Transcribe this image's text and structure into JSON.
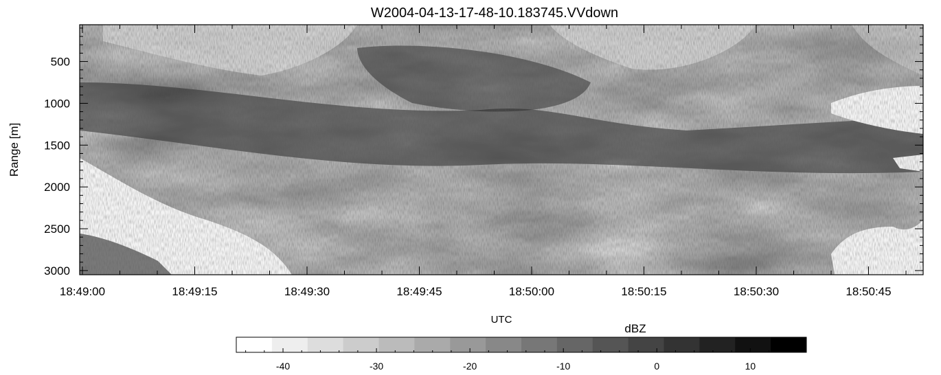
{
  "chart_data": {
    "type": "heatmap",
    "title": "W2004-04-13-17-48-10.183745.VVdown",
    "xlabel": "UTC",
    "ylabel": "Range [m]",
    "x_tick_labels": [
      "18:49:00",
      "18:49:15",
      "18:49:30",
      "18:49:45",
      "18:50:00",
      "18:50:15",
      "18:50:30",
      "18:50:45"
    ],
    "y_tick_labels": [
      "500",
      "1000",
      "1500",
      "2000",
      "2500",
      "3000"
    ],
    "y_ticks": [
      500,
      1000,
      1500,
      2000,
      2500,
      3000
    ],
    "ylim": [
      3050,
      60
    ],
    "colorbar": {
      "label": "dBZ",
      "range": [
        -45,
        16
      ],
      "tick_values": [
        -40,
        -30,
        -20,
        -10,
        0,
        10
      ],
      "tick_labels": [
        "-40",
        "-30",
        "-20",
        "-10",
        "0",
        "10"
      ],
      "colormap": "white-to-black",
      "levels": 16
    },
    "grid": false
  }
}
